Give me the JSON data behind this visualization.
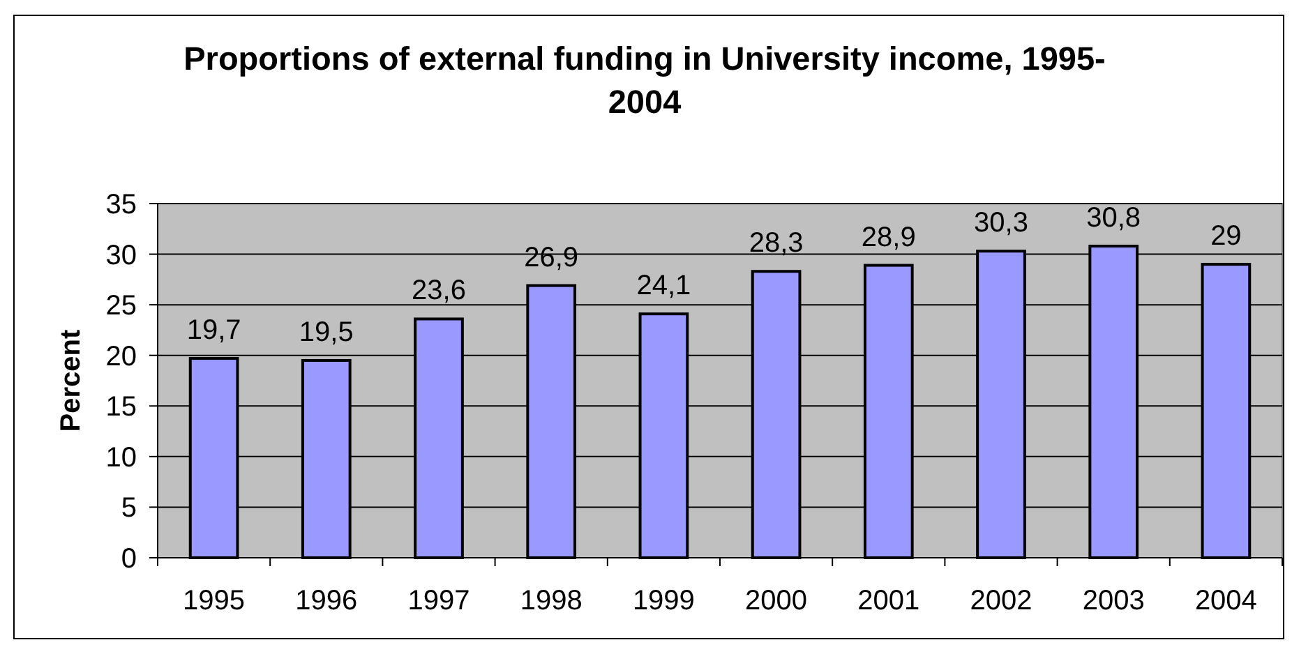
{
  "chart_data": {
    "type": "bar",
    "title": "Proportions of external funding in University income, 1995-2004",
    "ylabel": "Percent",
    "categories": [
      "1995",
      "1996",
      "1997",
      "1998",
      "1999",
      "2000",
      "2001",
      "2002",
      "2003",
      "2004"
    ],
    "values": [
      19.7,
      19.5,
      23.6,
      26.9,
      24.1,
      28.3,
      28.9,
      30.3,
      30.8,
      29
    ],
    "value_labels": [
      "19,7",
      "19,5",
      "23,6",
      "26,9",
      "24,1",
      "28,3",
      "28,9",
      "30,3",
      "30,8",
      "29"
    ],
    "color": "#9999ff",
    "ylim": [
      0,
      35
    ],
    "yticks": [
      0,
      5,
      10,
      15,
      20,
      25,
      30,
      35
    ],
    "grid": "y"
  }
}
